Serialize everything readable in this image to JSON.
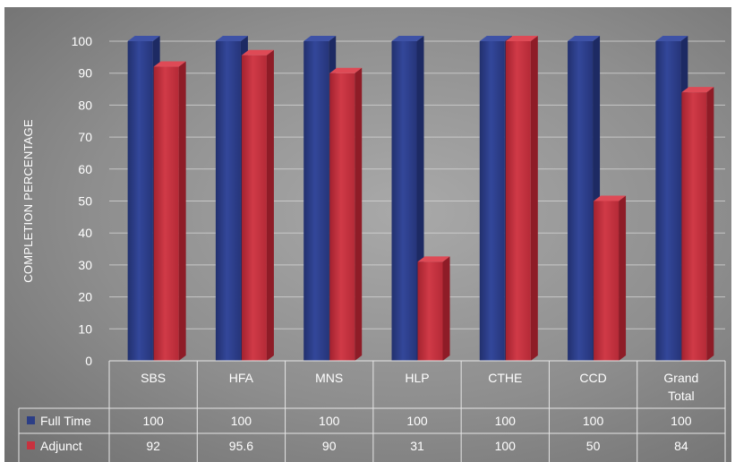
{
  "chart_data": {
    "type": "bar",
    "ylabel": "COMPLETION PERCENTAGE",
    "ylim": [
      0,
      100
    ],
    "yticks": [
      0,
      10,
      20,
      30,
      40,
      50,
      60,
      70,
      80,
      90,
      100
    ],
    "categories": [
      "SBS",
      "HFA",
      "MNS",
      "HLP",
      "CTHE",
      "CCD",
      "Grand Total"
    ],
    "series": [
      {
        "name": "Full Time",
        "color": "#2c3e86",
        "values": [
          100,
          100,
          100,
          100,
          100,
          100,
          100
        ],
        "labels": [
          "100",
          "100",
          "100",
          "100",
          "100",
          "100",
          "100"
        ]
      },
      {
        "name": "Adjunct",
        "color": "#c8323f",
        "values": [
          92,
          95.6,
          90,
          31,
          100,
          50,
          84
        ],
        "labels": [
          "92",
          "95.6",
          "90",
          "31",
          "100",
          "50",
          "84"
        ]
      }
    ],
    "grid": true,
    "legend": "data table below chart",
    "style": "3D clustered columns"
  }
}
